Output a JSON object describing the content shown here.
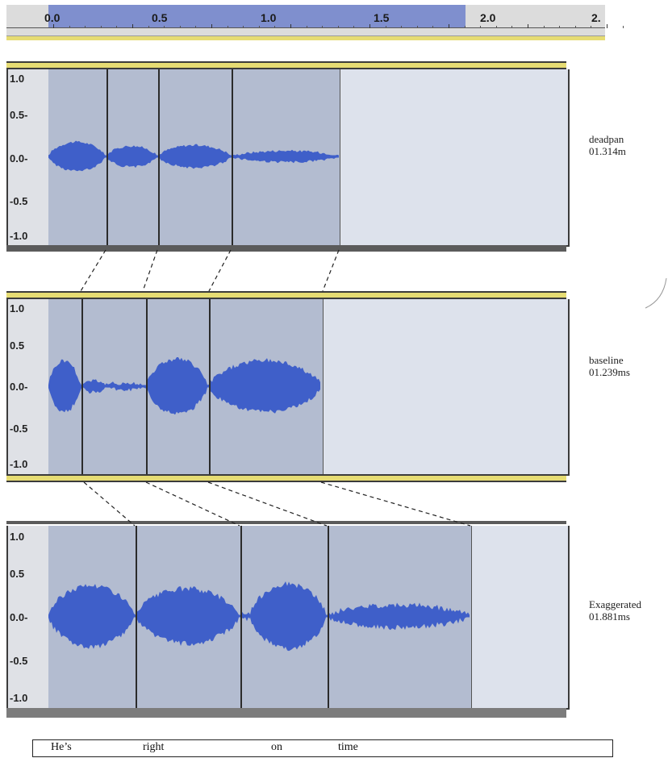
{
  "ruler": {
    "labels": [
      "0.0",
      "0.5",
      "1.0",
      "1.5",
      "2.0",
      "2."
    ]
  },
  "tracks": [
    {
      "id": "deadpan",
      "name": "deadpan",
      "duration": "01.314m",
      "scale_labels": [
        "1.0",
        "0.5-",
        "0.0-",
        "-0.5",
        "-1.0"
      ]
    },
    {
      "id": "baseline",
      "name": "baseline",
      "duration": "01.239ms",
      "scale_labels": [
        "1.0",
        "0.5",
        "0.0-",
        "-0.5",
        "-1.0"
      ]
    },
    {
      "id": "exaggerated",
      "name": "Exaggerated",
      "duration": "01.881ms",
      "scale_labels": [
        "1.0",
        "0.5",
        "0.0-",
        "-0.5",
        "-1.0"
      ]
    }
  ],
  "caption": {
    "words": [
      "He’s",
      "right",
      "on",
      "time"
    ]
  },
  "colors": {
    "waveform": "#3f5fc9",
    "selection": "#b3bcd0",
    "track_bg": "#dde2ec",
    "ruler_selection": "#7f8fce",
    "track_bar": "#e6dc73"
  }
}
